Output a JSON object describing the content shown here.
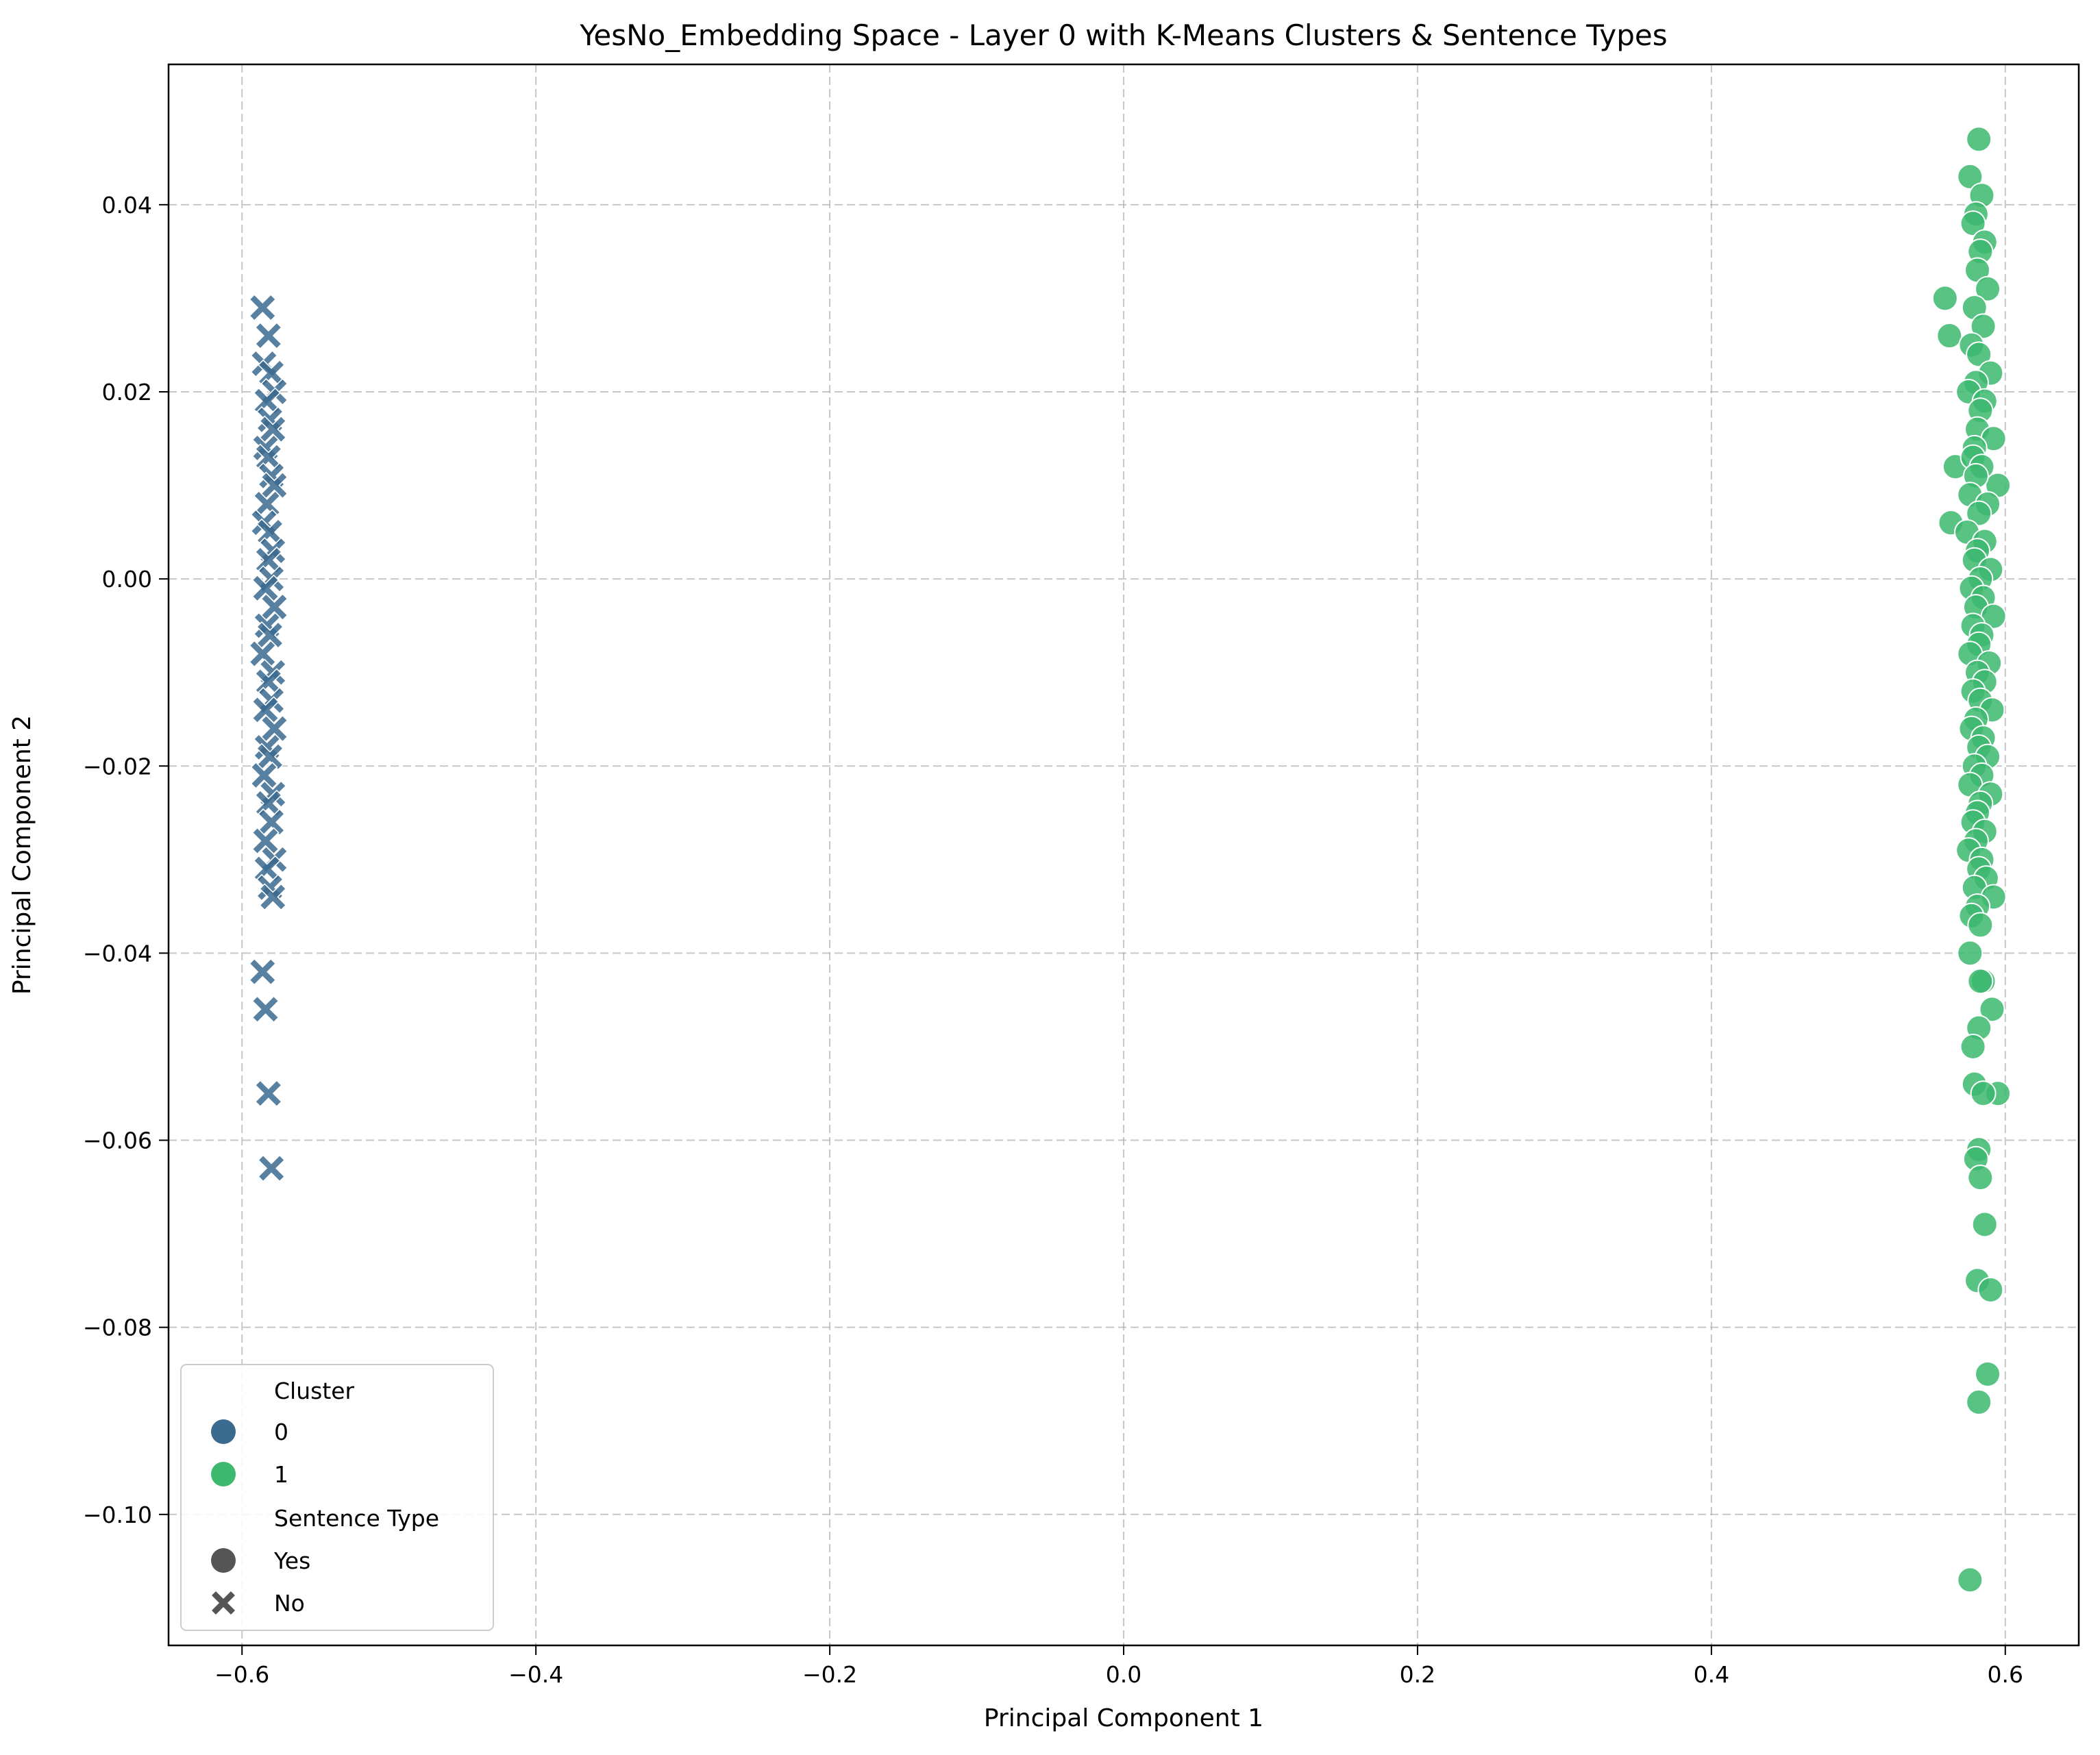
{
  "chart_data": {
    "type": "scatter",
    "title": "YesNo_Embedding Space - Layer 0 with K-Means Clusters & Sentence Types",
    "xlabel": "Principal Component 1",
    "ylabel": "Principal Component 2",
    "xlim": [
      -0.65,
      0.65
    ],
    "ylim": [
      -0.114,
      0.055
    ],
    "xticks": [
      {
        "value": -0.6,
        "label": "−0.6"
      },
      {
        "value": -0.4,
        "label": "−0.4"
      },
      {
        "value": -0.2,
        "label": "−0.2"
      },
      {
        "value": 0.0,
        "label": "0.0"
      },
      {
        "value": 0.2,
        "label": "0.2"
      },
      {
        "value": 0.4,
        "label": "0.4"
      },
      {
        "value": 0.6,
        "label": "0.6"
      }
    ],
    "yticks": [
      {
        "value": -0.1,
        "label": "−0.10"
      },
      {
        "value": -0.08,
        "label": "−0.08"
      },
      {
        "value": -0.06,
        "label": "−0.06"
      },
      {
        "value": -0.04,
        "label": "−0.04"
      },
      {
        "value": -0.02,
        "label": "−0.02"
      },
      {
        "value": 0.0,
        "label": "0.00"
      },
      {
        "value": 0.02,
        "label": "0.02"
      },
      {
        "value": 0.04,
        "label": "0.04"
      }
    ],
    "grid": true,
    "legend": {
      "placement": "lower-left",
      "cluster_title": "Cluster",
      "clusters": [
        {
          "label": "0",
          "color": "#3b6a8f"
        },
        {
          "label": "1",
          "color": "#3cb96e"
        }
      ],
      "type_title": "Sentence Type",
      "types": [
        {
          "label": "Yes",
          "marker": "circle"
        },
        {
          "label": "No",
          "marker": "x"
        }
      ],
      "marker_color": "#555555"
    },
    "series": [
      {
        "cluster": "0",
        "sentence_type": "No",
        "color": "#3b6a8f",
        "x": [
          -0.586,
          -0.582,
          -0.585,
          -0.58,
          -0.578,
          -0.583,
          -0.581,
          -0.579,
          -0.584,
          -0.582,
          -0.58,
          -0.578,
          -0.583,
          -0.585,
          -0.581,
          -0.579,
          -0.582,
          -0.58,
          -0.584,
          -0.578,
          -0.583,
          -0.581,
          -0.586,
          -0.579,
          -0.582,
          -0.58,
          -0.584,
          -0.578,
          -0.583,
          -0.581,
          -0.585,
          -0.579,
          -0.582,
          -0.58,
          -0.584,
          -0.578,
          -0.583,
          -0.581,
          -0.579,
          -0.586,
          -0.584,
          -0.582,
          -0.58
        ],
        "y": [
          0.029,
          0.026,
          0.023,
          0.022,
          0.02,
          0.019,
          0.017,
          0.016,
          0.014,
          0.013,
          0.011,
          0.01,
          0.008,
          0.006,
          0.005,
          0.003,
          0.002,
          0.0,
          -0.001,
          -0.003,
          -0.005,
          -0.006,
          -0.008,
          -0.01,
          -0.011,
          -0.013,
          -0.014,
          -0.016,
          -0.018,
          -0.019,
          -0.021,
          -0.023,
          -0.024,
          -0.026,
          -0.028,
          -0.03,
          -0.031,
          -0.033,
          -0.034,
          -0.042,
          -0.046,
          -0.055,
          -0.063
        ]
      },
      {
        "cluster": "1",
        "sentence_type": "Yes",
        "color": "#3cb96e",
        "x": [
          0.582,
          0.576,
          0.584,
          0.58,
          0.578,
          0.586,
          0.583,
          0.581,
          0.559,
          0.588,
          0.579,
          0.562,
          0.585,
          0.577,
          0.582,
          0.59,
          0.58,
          0.575,
          0.586,
          0.583,
          0.581,
          0.566,
          0.592,
          0.579,
          0.578,
          0.563,
          0.584,
          0.595,
          0.58,
          0.576,
          0.588,
          0.582,
          0.574,
          0.586,
          0.581,
          0.579,
          0.59,
          0.583,
          0.577,
          0.585,
          0.58,
          0.592,
          0.578,
          0.584,
          0.582,
          0.576,
          0.589,
          0.581,
          0.586,
          0.578,
          0.583,
          0.591,
          0.58,
          0.577,
          0.585,
          0.582,
          0.588,
          0.579,
          0.584,
          0.576,
          0.59,
          0.583,
          0.581,
          0.578,
          0.586,
          0.58,
          0.575,
          0.584,
          0.582,
          0.587,
          0.579,
          0.592,
          0.581,
          0.577,
          0.583,
          0.576,
          0.585,
          0.591,
          0.582,
          0.578,
          0.595,
          0.579,
          0.585,
          0.582,
          0.58,
          0.583,
          0.586,
          0.581,
          0.59,
          0.588,
          0.582,
          0.576,
          0.583
        ],
        "y": [
          0.047,
          0.043,
          0.041,
          0.039,
          0.038,
          0.036,
          0.035,
          0.033,
          0.03,
          0.031,
          0.029,
          0.026,
          0.027,
          0.025,
          0.024,
          0.022,
          0.021,
          0.02,
          0.019,
          0.018,
          0.016,
          0.012,
          0.015,
          0.014,
          0.013,
          0.006,
          0.012,
          0.01,
          0.011,
          0.009,
          0.008,
          0.007,
          0.005,
          0.004,
          0.003,
          0.002,
          0.001,
          0.0,
          -0.001,
          -0.002,
          -0.003,
          -0.004,
          -0.005,
          -0.006,
          -0.007,
          -0.008,
          -0.009,
          -0.01,
          -0.011,
          -0.012,
          -0.013,
          -0.014,
          -0.015,
          -0.016,
          -0.017,
          -0.018,
          -0.019,
          -0.02,
          -0.021,
          -0.022,
          -0.023,
          -0.024,
          -0.025,
          -0.026,
          -0.027,
          -0.028,
          -0.029,
          -0.03,
          -0.031,
          -0.032,
          -0.033,
          -0.034,
          -0.035,
          -0.036,
          -0.037,
          -0.04,
          -0.043,
          -0.046,
          -0.048,
          -0.05,
          -0.055,
          -0.054,
          -0.055,
          -0.061,
          -0.062,
          -0.064,
          -0.069,
          -0.075,
          -0.076,
          -0.085,
          -0.088,
          -0.107,
          -0.043
        ]
      }
    ]
  }
}
